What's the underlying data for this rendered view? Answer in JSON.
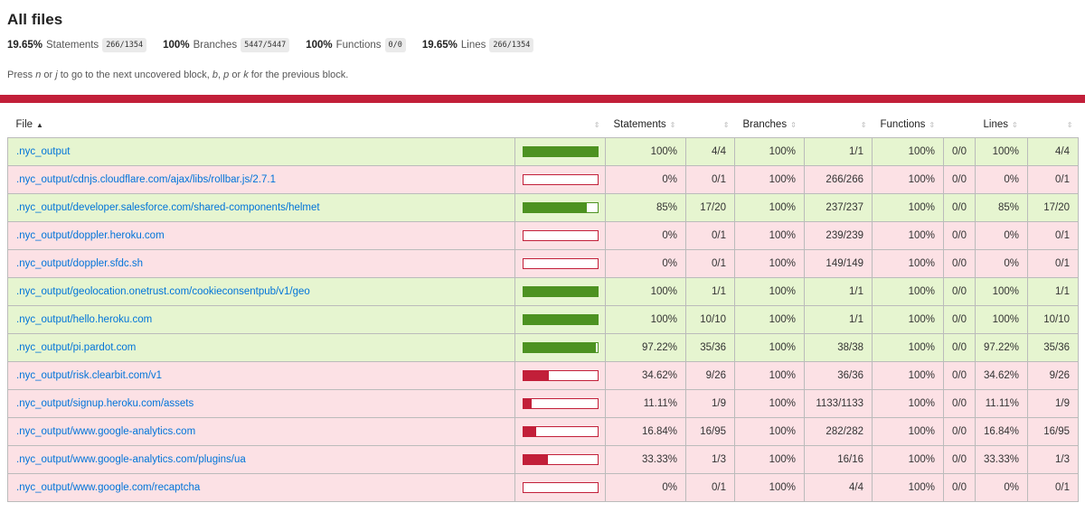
{
  "header": {
    "title": "All files",
    "summary": [
      {
        "pct": "19.65%",
        "label": "Statements",
        "fraction": "266/1354"
      },
      {
        "pct": "100%",
        "label": "Branches",
        "fraction": "5447/5447"
      },
      {
        "pct": "100%",
        "label": "Functions",
        "fraction": "0/0"
      },
      {
        "pct": "19.65%",
        "label": "Lines",
        "fraction": "266/1354"
      }
    ],
    "hint_parts": [
      "Press ",
      "n",
      " or ",
      "j",
      " to go to the next uncovered block, ",
      "b",
      ", ",
      "p",
      " or ",
      "k",
      " for the previous block."
    ]
  },
  "colors": {
    "low": "#fce1e5",
    "high": "#e6f5d0",
    "bar_low": "#c21f39",
    "bar_high": "#4d9221",
    "link": "#0074d9"
  },
  "table": {
    "headers": {
      "file": "File",
      "statements": "Statements",
      "branches": "Branches",
      "functions": "Functions",
      "lines": "Lines"
    },
    "sort_icons": {
      "asc": "▲",
      "both": "⇕"
    },
    "rows": [
      {
        "file": ".nyc_output",
        "level": "high",
        "bar": 1.0,
        "stmt_pct": "100%",
        "stmt_frac": "4/4",
        "br_pct": "100%",
        "br_frac": "1/1",
        "fn_pct": "100%",
        "fn_frac": "0/0",
        "ln_pct": "100%",
        "ln_frac": "4/4"
      },
      {
        "file": ".nyc_output/cdnjs.cloudflare.com/ajax/libs/rollbar.js/2.7.1",
        "level": "low",
        "bar": 0.0,
        "stmt_pct": "0%",
        "stmt_frac": "0/1",
        "br_pct": "100%",
        "br_frac": "266/266",
        "fn_pct": "100%",
        "fn_frac": "0/0",
        "ln_pct": "0%",
        "ln_frac": "0/1"
      },
      {
        "file": ".nyc_output/developer.salesforce.com/shared-components/helmet",
        "level": "high",
        "bar": 0.85,
        "stmt_pct": "85%",
        "stmt_frac": "17/20",
        "br_pct": "100%",
        "br_frac": "237/237",
        "fn_pct": "100%",
        "fn_frac": "0/0",
        "ln_pct": "85%",
        "ln_frac": "17/20"
      },
      {
        "file": ".nyc_output/doppler.heroku.com",
        "level": "low",
        "bar": 0.0,
        "stmt_pct": "0%",
        "stmt_frac": "0/1",
        "br_pct": "100%",
        "br_frac": "239/239",
        "fn_pct": "100%",
        "fn_frac": "0/0",
        "ln_pct": "0%",
        "ln_frac": "0/1"
      },
      {
        "file": ".nyc_output/doppler.sfdc.sh",
        "level": "low",
        "bar": 0.0,
        "stmt_pct": "0%",
        "stmt_frac": "0/1",
        "br_pct": "100%",
        "br_frac": "149/149",
        "fn_pct": "100%",
        "fn_frac": "0/0",
        "ln_pct": "0%",
        "ln_frac": "0/1"
      },
      {
        "file": ".nyc_output/geolocation.onetrust.com/cookieconsentpub/v1/geo",
        "level": "high",
        "bar": 1.0,
        "stmt_pct": "100%",
        "stmt_frac": "1/1",
        "br_pct": "100%",
        "br_frac": "1/1",
        "fn_pct": "100%",
        "fn_frac": "0/0",
        "ln_pct": "100%",
        "ln_frac": "1/1"
      },
      {
        "file": ".nyc_output/hello.heroku.com",
        "level": "high",
        "bar": 1.0,
        "stmt_pct": "100%",
        "stmt_frac": "10/10",
        "br_pct": "100%",
        "br_frac": "1/1",
        "fn_pct": "100%",
        "fn_frac": "0/0",
        "ln_pct": "100%",
        "ln_frac": "10/10"
      },
      {
        "file": ".nyc_output/pi.pardot.com",
        "level": "high",
        "bar": 0.9722,
        "stmt_pct": "97.22%",
        "stmt_frac": "35/36",
        "br_pct": "100%",
        "br_frac": "38/38",
        "fn_pct": "100%",
        "fn_frac": "0/0",
        "ln_pct": "97.22%",
        "ln_frac": "35/36"
      },
      {
        "file": ".nyc_output/risk.clearbit.com/v1",
        "level": "low",
        "bar": 0.3462,
        "stmt_pct": "34.62%",
        "stmt_frac": "9/26",
        "br_pct": "100%",
        "br_frac": "36/36",
        "fn_pct": "100%",
        "fn_frac": "0/0",
        "ln_pct": "34.62%",
        "ln_frac": "9/26"
      },
      {
        "file": ".nyc_output/signup.heroku.com/assets",
        "level": "low",
        "bar": 0.1111,
        "stmt_pct": "11.11%",
        "stmt_frac": "1/9",
        "br_pct": "100%",
        "br_frac": "1133/1133",
        "fn_pct": "100%",
        "fn_frac": "0/0",
        "ln_pct": "11.11%",
        "ln_frac": "1/9"
      },
      {
        "file": ".nyc_output/www.google-analytics.com",
        "level": "low",
        "bar": 0.1684,
        "stmt_pct": "16.84%",
        "stmt_frac": "16/95",
        "br_pct": "100%",
        "br_frac": "282/282",
        "fn_pct": "100%",
        "fn_frac": "0/0",
        "ln_pct": "16.84%",
        "ln_frac": "16/95"
      },
      {
        "file": ".nyc_output/www.google-analytics.com/plugins/ua",
        "level": "low",
        "bar": 0.3333,
        "stmt_pct": "33.33%",
        "stmt_frac": "1/3",
        "br_pct": "100%",
        "br_frac": "16/16",
        "fn_pct": "100%",
        "fn_frac": "0/0",
        "ln_pct": "33.33%",
        "ln_frac": "1/3"
      },
      {
        "file": ".nyc_output/www.google.com/recaptcha",
        "level": "low",
        "bar": 0.0,
        "stmt_pct": "0%",
        "stmt_frac": "0/1",
        "br_pct": "100%",
        "br_frac": "4/4",
        "fn_pct": "100%",
        "fn_frac": "0/0",
        "ln_pct": "0%",
        "ln_frac": "0/1"
      }
    ]
  }
}
